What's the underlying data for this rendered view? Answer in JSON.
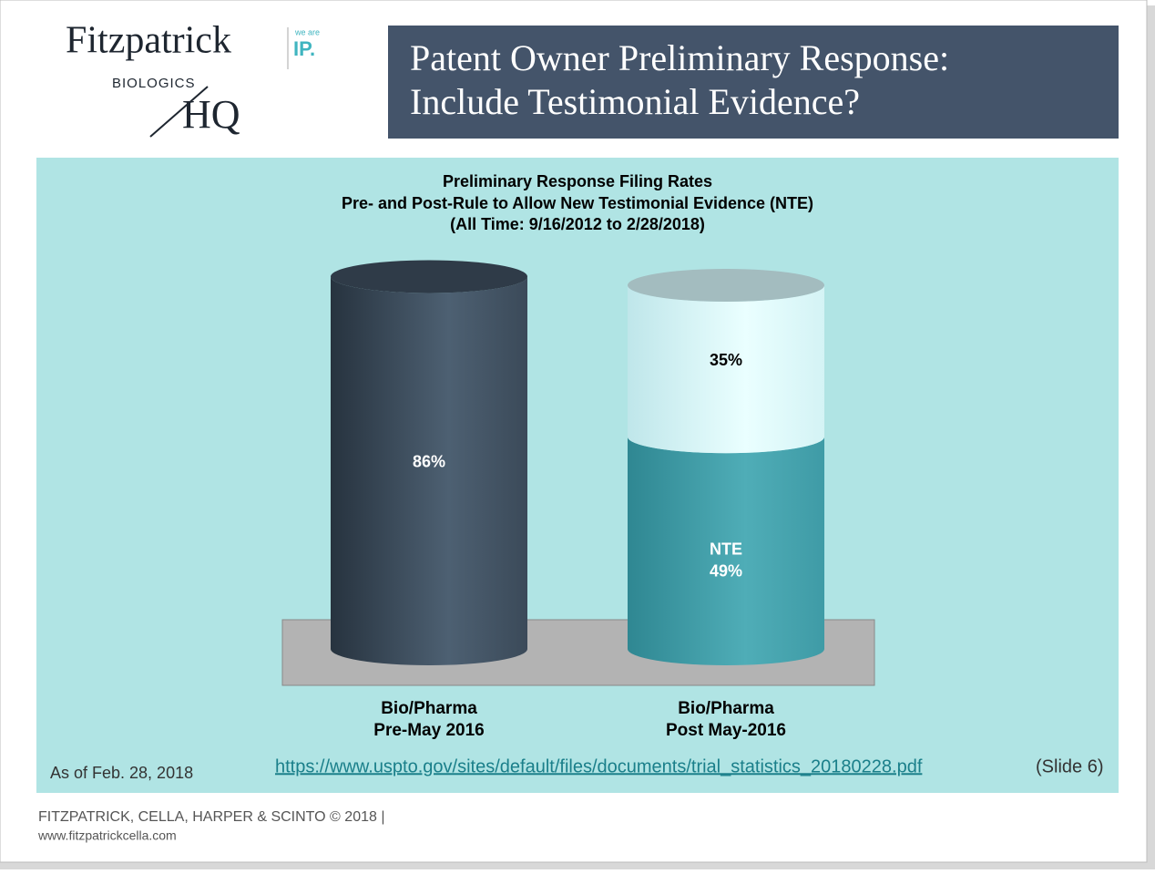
{
  "header": {
    "logo_name": "Fitzpatrick",
    "logo_tag_small": "we are",
    "logo_tag": "IP.",
    "logo_sub": "BIOLOGICS",
    "logo_hq": "HQ",
    "title": [
      "Patent Owner Preliminary Response:",
      "Include Testimonial Evidence?"
    ]
  },
  "chart_data": {
    "type": "stacked-cylinder",
    "title": [
      "Preliminary Response Filing Rates",
      "Pre- and Post-Rule to Allow New Testimonial Evidence (NTE)",
      "(All Time: 9/16/2012 to 2/28/2018)"
    ],
    "categories": [
      [
        "Bio/Pharma",
        "Pre-May 2016"
      ],
      [
        "Bio/Pharma",
        "Post May-2016"
      ]
    ],
    "series": [
      {
        "values": [
          86,
          49
        ],
        "value_labels": [
          "86%",
          "49%"
        ],
        "segment_names": [
          null,
          "NTE"
        ],
        "colors": [
          "#3d4c5b",
          "#3f9ba6"
        ]
      },
      {
        "values": [
          null,
          35
        ],
        "value_labels": [
          null,
          "35%"
        ],
        "colors": [
          null,
          "#d4f3f5"
        ]
      }
    ]
  },
  "notes": {
    "as_of": "As of Feb. 28, 2018",
    "source_url": "https://www.uspto.gov/sites/default/files/documents/trial_statistics_20180228.pdf",
    "source_note": "(Slide 6)"
  },
  "footer": {
    "firm": "FITZPATRICK,  CELLA,  HARPER  &  SCINTO  ©  2018  |",
    "website": "www.fitzpatrickcella.com"
  }
}
